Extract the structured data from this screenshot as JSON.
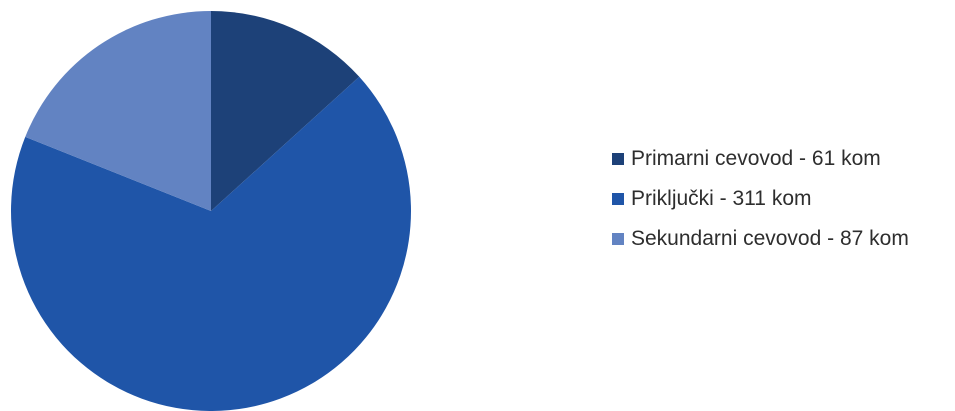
{
  "chart_data": {
    "type": "pie",
    "categories": [
      "Primarni cevovod",
      "Priključki",
      "Sekundarni cevovod"
    ],
    "values": [
      61,
      311,
      87
    ],
    "unit": "kom",
    "start_angle_deg": 0,
    "direction": "clockwise",
    "colors": [
      "#1d4178",
      "#1f55a8",
      "#6283c2"
    ],
    "legend": {
      "position": "right",
      "entries": [
        "Primarni cevovod - 61 kom",
        "Priključki - 311 kom",
        "Sekundarni cevovod - 87 kom"
      ]
    }
  }
}
